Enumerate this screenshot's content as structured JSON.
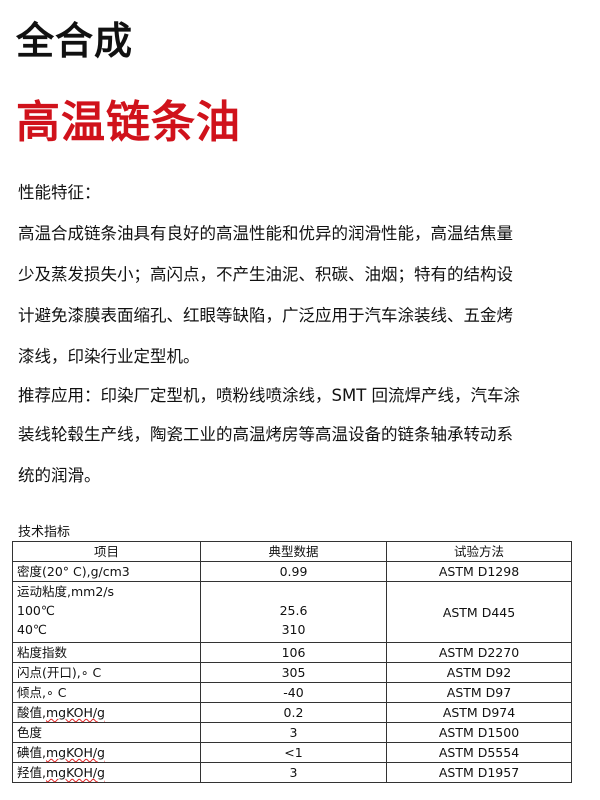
{
  "title": "全合成",
  "subtitle": "高温链条油",
  "colors": {
    "subtitle": "#d0121b"
  },
  "section_label": "性能特征：",
  "features_lines": [
    "高温合成链条油具有良好的高温性能和优异的润滑性能，高温结焦量",
    "少及蒸发损失小；高闪点，不产生油泥、积碳、油烟；特有的结构设",
    "计避免漆膜表面缩孔、红眼等缺陷，广泛应用于汽车涂装线、五金烤",
    "漆线，印染行业定型机。"
  ],
  "application_lines": [
    "推荐应用：印染厂定型机，喷粉线喷涂线，SMT 回流焊产线，汽车涂",
    "装线轮毂生产线，陶瓷工业的高温烤房等高温设备的链条轴承转动系",
    "统的润滑。"
  ],
  "table": {
    "caption": "技术指标",
    "headers": [
      "项目",
      "典型数据",
      "试验方法"
    ],
    "rows": [
      {
        "item": "密度(20° C),g/cm3",
        "value": "0.99",
        "method": "ASTM D1298"
      },
      {
        "item": "运动粘度,mm2/s",
        "sub": [
          "100℃",
          "40℃"
        ],
        "values": [
          "25.6",
          "310"
        ],
        "method": "ASTM D445"
      },
      {
        "item": "粘度指数",
        "value": "106",
        "method": "ASTM D2270"
      },
      {
        "item": "闪点(开口),∘ C",
        "value": "305",
        "method": "ASTM D92"
      },
      {
        "item": "倾点,∘ C",
        "value": "-40",
        "method": "ASTM D97"
      },
      {
        "item_cn": "酸值,",
        "item_unit": "mgKOH/g",
        "value": "0.2",
        "method": "ASTM D974"
      },
      {
        "item": "色度",
        "value": "3",
        "method": "ASTM D1500"
      },
      {
        "item_cn": "碘值,",
        "item_unit": "mgKOH/g",
        "value": "<1",
        "method": "ASTM D5554"
      },
      {
        "item_cn": "羟值,",
        "item_unit": "mgKOH/g",
        "value": "3",
        "method": "ASTM D1957"
      }
    ]
  }
}
